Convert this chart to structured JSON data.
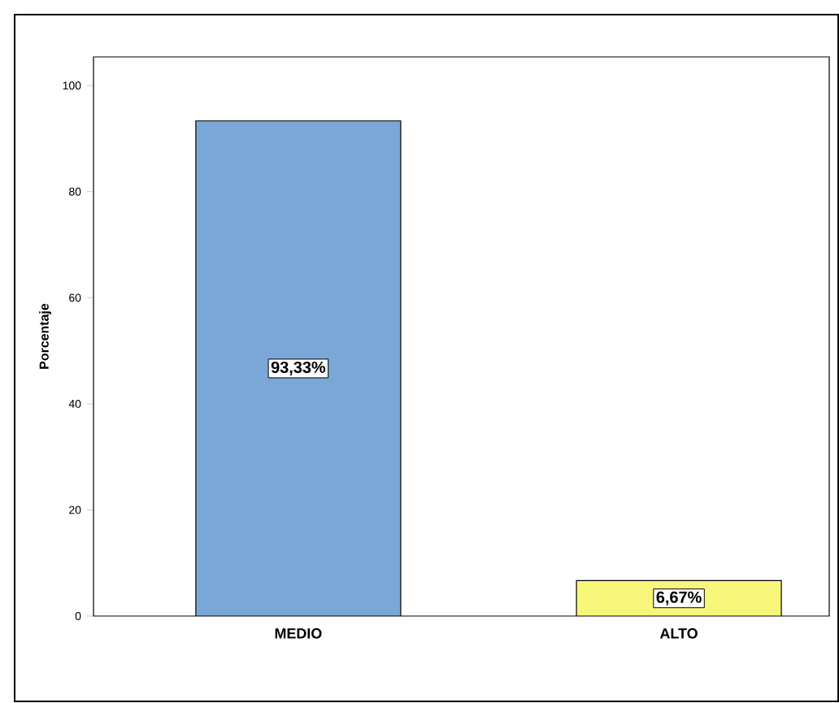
{
  "chart_data": {
    "type": "bar",
    "ylabel": "Porcentaje",
    "categories": [
      "MEDIO",
      "ALTO"
    ],
    "values": [
      93.33,
      6.67
    ],
    "colors": [
      "#7ba7d6",
      "#f8f67a"
    ],
    "value_labels": [
      "93,33%",
      "6,67%"
    ],
    "ylim": [
      0,
      105.4
    ],
    "yticks": [
      0,
      20,
      40,
      60,
      80,
      100
    ]
  }
}
